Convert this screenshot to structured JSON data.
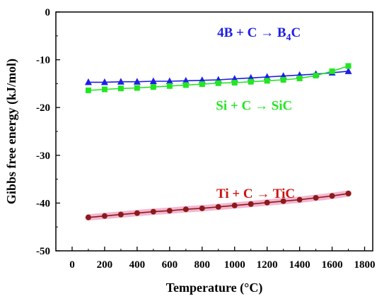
{
  "chart_data": {
    "type": "line",
    "xlabel": "Temperature (°C)",
    "ylabel": "Gibbs free energy (kJ/mol)",
    "xlim": [
      -100,
      1850
    ],
    "ylim": [
      -50,
      0
    ],
    "xticks": [
      0,
      200,
      400,
      600,
      800,
      1000,
      1200,
      1400,
      1600,
      1800
    ],
    "yticks": [
      0,
      -10,
      -20,
      -30,
      -40,
      -50
    ],
    "x": [
      100,
      200,
      300,
      400,
      500,
      600,
      700,
      800,
      900,
      1000,
      1100,
      1200,
      1300,
      1400,
      1500,
      1600,
      1700
    ],
    "series": [
      {
        "key": "b4c",
        "color": "#1e1ee6",
        "marker": "triangle",
        "values": [
          -14.7,
          -14.7,
          -14.6,
          -14.6,
          -14.5,
          -14.5,
          -14.4,
          -14.3,
          -14.2,
          -14.0,
          -13.8,
          -13.6,
          -13.4,
          -13.2,
          -13.0,
          -12.7,
          -12.4
        ]
      },
      {
        "key": "sic",
        "color": "#22e622",
        "marker": "square",
        "values": [
          -16.4,
          -16.2,
          -16.0,
          -15.9,
          -15.7,
          -15.5,
          -15.3,
          -15.1,
          -14.9,
          -14.8,
          -14.6,
          -14.4,
          -14.2,
          -13.9,
          -13.3,
          -12.4,
          -11.3
        ]
      },
      {
        "key": "tic",
        "color": "#8b1a1a",
        "marker": "circle",
        "values": [
          -43.0,
          -42.7,
          -42.4,
          -42.1,
          -41.8,
          -41.6,
          -41.3,
          -41.1,
          -40.8,
          -40.5,
          -40.2,
          -39.9,
          -39.6,
          -39.3,
          -38.9,
          -38.5,
          -38.0
        ]
      }
    ],
    "annotations": [
      {
        "key": "b4c",
        "parts": [
          "4B + C → B",
          "4",
          "C"
        ],
        "color": "#1e1ee6"
      },
      {
        "key": "sic",
        "parts": [
          "Si + C → SiC"
        ],
        "color": "#22e622"
      },
      {
        "key": "tic",
        "parts": [
          "Ti + C → TiC"
        ],
        "color": "#cc1111"
      }
    ]
  }
}
